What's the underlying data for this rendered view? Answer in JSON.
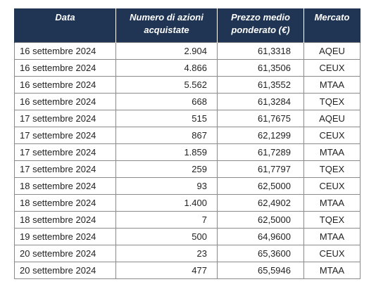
{
  "table": {
    "headers": [
      "Data",
      "Numero di azioni acquistate",
      "Prezzo medio ponderato (€)",
      "Mercato"
    ],
    "rows": [
      [
        "16 settembre 2024",
        "2.904",
        "61,3318",
        "AQEU"
      ],
      [
        "16 settembre 2024",
        "4.866",
        "61,3506",
        "CEUX"
      ],
      [
        "16 settembre 2024",
        "5.562",
        "61,3552",
        "MTAA"
      ],
      [
        "16 settembre 2024",
        "668",
        "61,3284",
        "TQEX"
      ],
      [
        "17 settembre 2024",
        "515",
        "61,7675",
        "AQEU"
      ],
      [
        "17 settembre 2024",
        "867",
        "62,1299",
        "CEUX"
      ],
      [
        "17 settembre 2024",
        "1.859",
        "61,7289",
        "MTAA"
      ],
      [
        "17 settembre 2024",
        "259",
        "61,7797",
        "TQEX"
      ],
      [
        "18 settembre 2024",
        "93",
        "62,5000",
        "CEUX"
      ],
      [
        "18 settembre 2024",
        "1.400",
        "62,4902",
        "MTAA"
      ],
      [
        "18 settembre 2024",
        "7",
        "62,5000",
        "TQEX"
      ],
      [
        "19 settembre 2024",
        "500",
        "64,9600",
        "MTAA"
      ],
      [
        "20 settembre 2024",
        "23",
        "65,3600",
        "CEUX"
      ],
      [
        "20 settembre 2024",
        "477",
        "65,5946",
        "MTAA"
      ]
    ]
  },
  "colors": {
    "header_bg": "#1f3553",
    "header_text": "#ffffff",
    "border": "#8a8a8a"
  }
}
